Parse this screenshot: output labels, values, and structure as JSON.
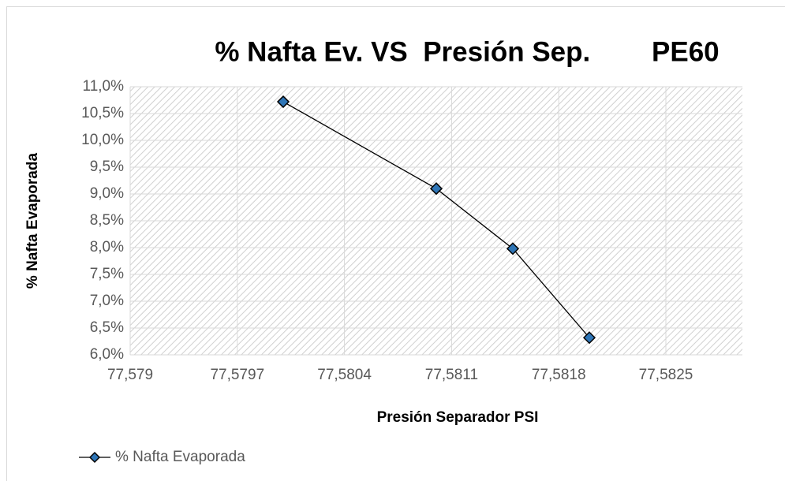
{
  "chart_data": {
    "type": "line",
    "title": "% Nafta Ev. VS  Presión Sep.        PE60",
    "x_label": "Presión Separador PSI",
    "y_label": "% Nafta Evaporada",
    "x": [
      77.58,
      77.581,
      77.5815,
      77.582
    ],
    "series": [
      {
        "name": "% Nafta Evaporada",
        "color": "#000000",
        "marker_color": "#2e75b6",
        "values": [
          10.72,
          9.1,
          7.98,
          6.32
        ]
      }
    ],
    "xlim": [
      77.579,
      77.583
    ],
    "xticks": [
      {
        "value": 77.579,
        "label": "77,579"
      },
      {
        "value": 77.5797,
        "label": "77,5797"
      },
      {
        "value": 77.5804,
        "label": "77,5804"
      },
      {
        "value": 77.5811,
        "label": "77,5811"
      },
      {
        "value": 77.5818,
        "label": "77,5818"
      },
      {
        "value": 77.5825,
        "label": "77,5825"
      }
    ],
    "ylim": [
      6,
      11
    ],
    "yticks": [
      {
        "value": 6,
        "label": "6,0%"
      },
      {
        "value": 6.5,
        "label": "6,5%"
      },
      {
        "value": 7,
        "label": "7,0%"
      },
      {
        "value": 7.5,
        "label": "7,5%"
      },
      {
        "value": 8,
        "label": "8,0%"
      },
      {
        "value": 8.5,
        "label": "8,5%"
      },
      {
        "value": 9,
        "label": "9,0%"
      },
      {
        "value": 9.5,
        "label": "9,5%"
      },
      {
        "value": 10,
        "label": "10,0%"
      },
      {
        "value": 10.5,
        "label": "10,5%"
      },
      {
        "value": 11,
        "label": "11,0%"
      }
    ],
    "grid": true,
    "legend": "bottom-left"
  }
}
